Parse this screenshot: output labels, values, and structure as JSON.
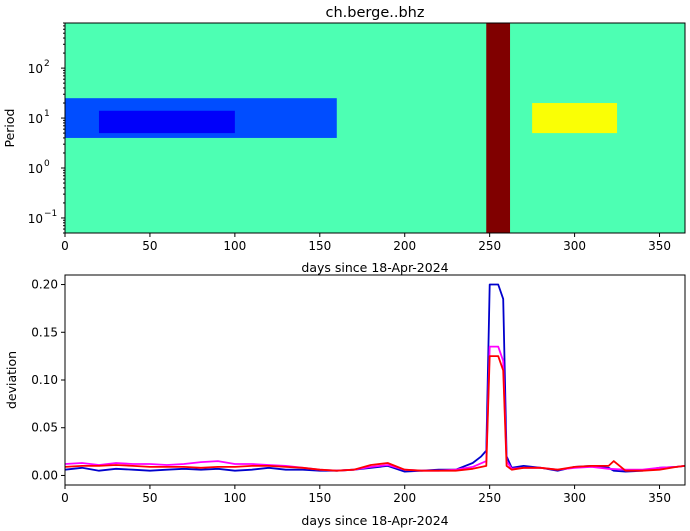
{
  "chart_data": [
    {
      "type": "heatmap",
      "title": "ch.berge..bhz",
      "xlabel": "days since 18-Apr-2024",
      "ylabel": "Period",
      "xlim": [
        0,
        365
      ],
      "ylim": [
        0.05,
        800
      ],
      "y_scale": "log",
      "colormap": "jet",
      "x_ticks": [
        0,
        50,
        100,
        150,
        200,
        250,
        300,
        350
      ],
      "x_tick_labels": [
        "0",
        "50",
        "100",
        "150",
        "200",
        "250",
        "300",
        "350"
      ],
      "y_ticks": [
        0.1,
        1,
        10,
        100
      ],
      "y_tick_labels": [
        "10",
        "10",
        "10",
        "10"
      ],
      "y_tick_exponents": [
        "−1",
        "0",
        "1",
        "2"
      ],
      "features": [
        {
          "name": "background",
          "x": [
            0,
            365
          ],
          "y": [
            0.05,
            800
          ],
          "value": 0.45
        },
        {
          "name": "low band",
          "x": [
            0,
            160
          ],
          "y": [
            4,
            25
          ],
          "value": 0.2
        },
        {
          "name": "low band core",
          "x": [
            20,
            100
          ],
          "y": [
            5,
            14
          ],
          "value": 0.12
        },
        {
          "name": "high anomaly",
          "x": [
            248,
            262
          ],
          "y": [
            0.05,
            800
          ],
          "value": 1.0
        },
        {
          "name": "secondary",
          "x": [
            275,
            325
          ],
          "y": [
            5,
            20
          ],
          "value": 0.62
        }
      ]
    },
    {
      "type": "line",
      "xlabel": "days since 18-Apr-2024",
      "ylabel": "deviation",
      "xlim": [
        0,
        365
      ],
      "ylim": [
        -0.01,
        0.21
      ],
      "x_ticks": [
        0,
        50,
        100,
        150,
        200,
        250,
        300,
        350
      ],
      "x_tick_labels": [
        "0",
        "50",
        "100",
        "150",
        "200",
        "250",
        "300",
        "350"
      ],
      "y_ticks": [
        0.0,
        0.05,
        0.1,
        0.15,
        0.2
      ],
      "y_tick_labels": [
        "0.00",
        "0.05",
        "0.10",
        "0.15",
        "0.20"
      ],
      "series": [
        {
          "color": "#0000cc",
          "x": [
            0,
            10,
            20,
            30,
            40,
            50,
            60,
            70,
            80,
            90,
            100,
            110,
            120,
            130,
            140,
            150,
            160,
            170,
            180,
            190,
            200,
            210,
            220,
            230,
            240,
            245,
            248,
            250,
            255,
            258,
            260,
            263,
            270,
            280,
            290,
            300,
            310,
            320,
            323,
            330,
            340,
            350,
            360,
            365
          ],
          "y": [
            0.006,
            0.008,
            0.005,
            0.007,
            0.006,
            0.005,
            0.006,
            0.007,
            0.006,
            0.007,
            0.005,
            0.006,
            0.008,
            0.006,
            0.006,
            0.005,
            0.005,
            0.006,
            0.008,
            0.01,
            0.004,
            0.005,
            0.006,
            0.006,
            0.013,
            0.02,
            0.026,
            0.2,
            0.2,
            0.185,
            0.02,
            0.008,
            0.01,
            0.008,
            0.005,
            0.009,
            0.01,
            0.008,
            0.005,
            0.004,
            0.005,
            0.008,
            0.009,
            0.01
          ]
        },
        {
          "color": "#ff00ff",
          "x": [
            0,
            10,
            20,
            30,
            40,
            50,
            60,
            70,
            80,
            90,
            100,
            110,
            120,
            130,
            140,
            150,
            160,
            170,
            180,
            190,
            200,
            210,
            220,
            230,
            240,
            248,
            250,
            255,
            258,
            260,
            263,
            270,
            280,
            290,
            300,
            310,
            320,
            330,
            340,
            350,
            360,
            365
          ],
          "y": [
            0.012,
            0.013,
            0.011,
            0.013,
            0.012,
            0.012,
            0.011,
            0.012,
            0.014,
            0.015,
            0.012,
            0.012,
            0.011,
            0.01,
            0.008,
            0.006,
            0.005,
            0.006,
            0.009,
            0.011,
            0.006,
            0.005,
            0.005,
            0.006,
            0.009,
            0.015,
            0.135,
            0.135,
            0.12,
            0.015,
            0.007,
            0.008,
            0.008,
            0.006,
            0.008,
            0.009,
            0.007,
            0.006,
            0.006,
            0.008,
            0.009,
            0.01
          ]
        },
        {
          "color": "#ff0000",
          "x": [
            0,
            10,
            20,
            30,
            40,
            50,
            60,
            70,
            80,
            90,
            100,
            110,
            120,
            130,
            140,
            150,
            160,
            170,
            180,
            190,
            200,
            210,
            220,
            230,
            240,
            248,
            250,
            255,
            258,
            260,
            263,
            270,
            280,
            290,
            300,
            310,
            320,
            323,
            330,
            340,
            350,
            360,
            365
          ],
          "y": [
            0.009,
            0.01,
            0.01,
            0.011,
            0.01,
            0.009,
            0.009,
            0.009,
            0.008,
            0.009,
            0.009,
            0.01,
            0.01,
            0.009,
            0.008,
            0.006,
            0.005,
            0.006,
            0.011,
            0.013,
            0.006,
            0.005,
            0.005,
            0.005,
            0.007,
            0.01,
            0.125,
            0.125,
            0.11,
            0.01,
            0.006,
            0.008,
            0.008,
            0.006,
            0.009,
            0.01,
            0.01,
            0.015,
            0.005,
            0.005,
            0.006,
            0.009,
            0.01
          ]
        }
      ]
    }
  ]
}
